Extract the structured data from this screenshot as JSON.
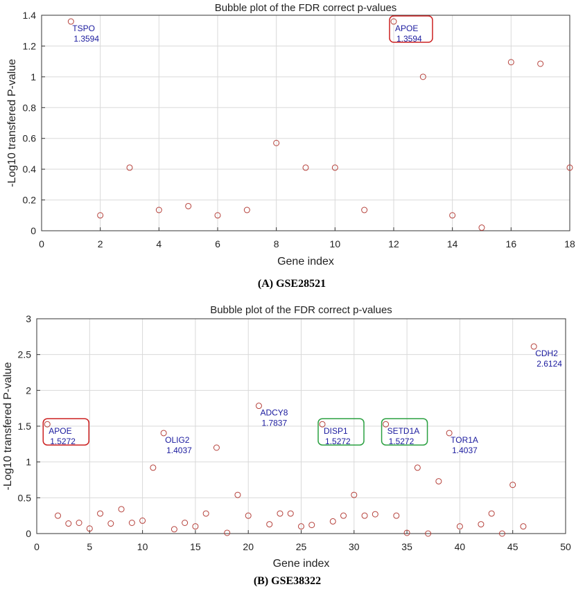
{
  "chart_data": [
    {
      "type": "scatter",
      "title": "Bubble plot of the FDR correct p-values",
      "xlabel": "Gene index",
      "ylabel": "-Log10 transfered P-value",
      "caption": "(A) GSE28521",
      "xlim": [
        0,
        18
      ],
      "ylim": [
        0,
        1.4
      ],
      "xticks": [
        0,
        2,
        4,
        6,
        8,
        10,
        12,
        14,
        16,
        18
      ],
      "yticks": [
        0,
        0.2,
        0.4,
        0.6,
        0.8,
        1,
        1.2,
        1.4
      ],
      "grid": true,
      "marker_color": "#b5403a",
      "points": [
        {
          "x": 1,
          "y": 1.3594
        },
        {
          "x": 2,
          "y": 0.1
        },
        {
          "x": 3,
          "y": 0.41
        },
        {
          "x": 4,
          "y": 0.135
        },
        {
          "x": 5,
          "y": 0.16
        },
        {
          "x": 6,
          "y": 0.1
        },
        {
          "x": 7,
          "y": 0.135
        },
        {
          "x": 8,
          "y": 0.57
        },
        {
          "x": 9,
          "y": 0.41
        },
        {
          "x": 10,
          "y": 0.41
        },
        {
          "x": 11,
          "y": 0.135
        },
        {
          "x": 12,
          "y": 1.3594
        },
        {
          "x": 13,
          "y": 1.0
        },
        {
          "x": 14,
          "y": 0.1
        },
        {
          "x": 15,
          "y": 0.02
        },
        {
          "x": 16,
          "y": 1.095
        },
        {
          "x": 17,
          "y": 1.085
        },
        {
          "x": 18,
          "y": 0.41
        }
      ],
      "annotations": [
        {
          "x": 1,
          "y": 1.3594,
          "gene": "TSPO",
          "value": "1.3594",
          "box": ""
        },
        {
          "x": 12,
          "y": 1.3594,
          "gene": "APOE",
          "value": "1.3594",
          "box": "#cc2020"
        }
      ]
    },
    {
      "type": "scatter",
      "title": "Bubble plot of the FDR correct p-values",
      "xlabel": "Gene index",
      "ylabel": "-Log10 transfered P-value",
      "caption": "(B) GSE38322",
      "xlim": [
        0,
        50
      ],
      "ylim": [
        0,
        3
      ],
      "xticks": [
        0,
        5,
        10,
        15,
        20,
        25,
        30,
        35,
        40,
        45,
        50
      ],
      "yticks": [
        0,
        0.5,
        1,
        1.5,
        2,
        2.5,
        3
      ],
      "grid": true,
      "marker_color": "#b5403a",
      "points": [
        {
          "x": 1,
          "y": 1.5272
        },
        {
          "x": 2,
          "y": 0.25
        },
        {
          "x": 3,
          "y": 0.14
        },
        {
          "x": 4,
          "y": 0.15
        },
        {
          "x": 5,
          "y": 0.07
        },
        {
          "x": 6,
          "y": 0.28
        },
        {
          "x": 7,
          "y": 0.14
        },
        {
          "x": 8,
          "y": 0.34
        },
        {
          "x": 9,
          "y": 0.15
        },
        {
          "x": 10,
          "y": 0.18
        },
        {
          "x": 11,
          "y": 0.92
        },
        {
          "x": 12,
          "y": 1.4037
        },
        {
          "x": 13,
          "y": 0.06
        },
        {
          "x": 14,
          "y": 0.15
        },
        {
          "x": 15,
          "y": 0.1
        },
        {
          "x": 16,
          "y": 0.28
        },
        {
          "x": 17,
          "y": 1.2
        },
        {
          "x": 18,
          "y": 0.01
        },
        {
          "x": 19,
          "y": 0.54
        },
        {
          "x": 20,
          "y": 0.25
        },
        {
          "x": 21,
          "y": 1.7837
        },
        {
          "x": 22,
          "y": 0.13
        },
        {
          "x": 23,
          "y": 0.28
        },
        {
          "x": 24,
          "y": 0.28
        },
        {
          "x": 25,
          "y": 0.1
        },
        {
          "x": 26,
          "y": 0.12
        },
        {
          "x": 27,
          "y": 1.5272
        },
        {
          "x": 28,
          "y": 0.17
        },
        {
          "x": 29,
          "y": 0.25
        },
        {
          "x": 30,
          "y": 0.54
        },
        {
          "x": 31,
          "y": 0.25
        },
        {
          "x": 32,
          "y": 0.27
        },
        {
          "x": 33,
          "y": 1.5272
        },
        {
          "x": 34,
          "y": 0.25
        },
        {
          "x": 35,
          "y": 0.01
        },
        {
          "x": 36,
          "y": 0.92
        },
        {
          "x": 37,
          "y": 0.0
        },
        {
          "x": 38,
          "y": 0.73
        },
        {
          "x": 39,
          "y": 1.4037
        },
        {
          "x": 40,
          "y": 0.1
        },
        {
          "x": 42,
          "y": 0.13
        },
        {
          "x": 43,
          "y": 0.28
        },
        {
          "x": 44,
          "y": 0.0
        },
        {
          "x": 45,
          "y": 0.68
        },
        {
          "x": 46,
          "y": 0.1
        },
        {
          "x": 47,
          "y": 2.6124
        }
      ],
      "annotations": [
        {
          "x": 1,
          "y": 1.5272,
          "gene": "APOE",
          "value": "1.5272",
          "box": "#cc2020"
        },
        {
          "x": 12,
          "y": 1.4037,
          "gene": "OLIG2",
          "value": "1.4037",
          "box": ""
        },
        {
          "x": 21,
          "y": 1.7837,
          "gene": "ADCY8",
          "value": "1.7837",
          "box": ""
        },
        {
          "x": 27,
          "y": 1.5272,
          "gene": "DISP1",
          "value": "1.5272",
          "box": "#2aa040"
        },
        {
          "x": 33,
          "y": 1.5272,
          "gene": "SETD1A",
          "value": "1.5272",
          "box": "#2aa040"
        },
        {
          "x": 39,
          "y": 1.4037,
          "gene": "TOR1A",
          "value": "1.4037",
          "box": ""
        },
        {
          "x": 47,
          "y": 2.6124,
          "gene": "CDH2",
          "value": "2.6124",
          "box": ""
        }
      ]
    }
  ]
}
